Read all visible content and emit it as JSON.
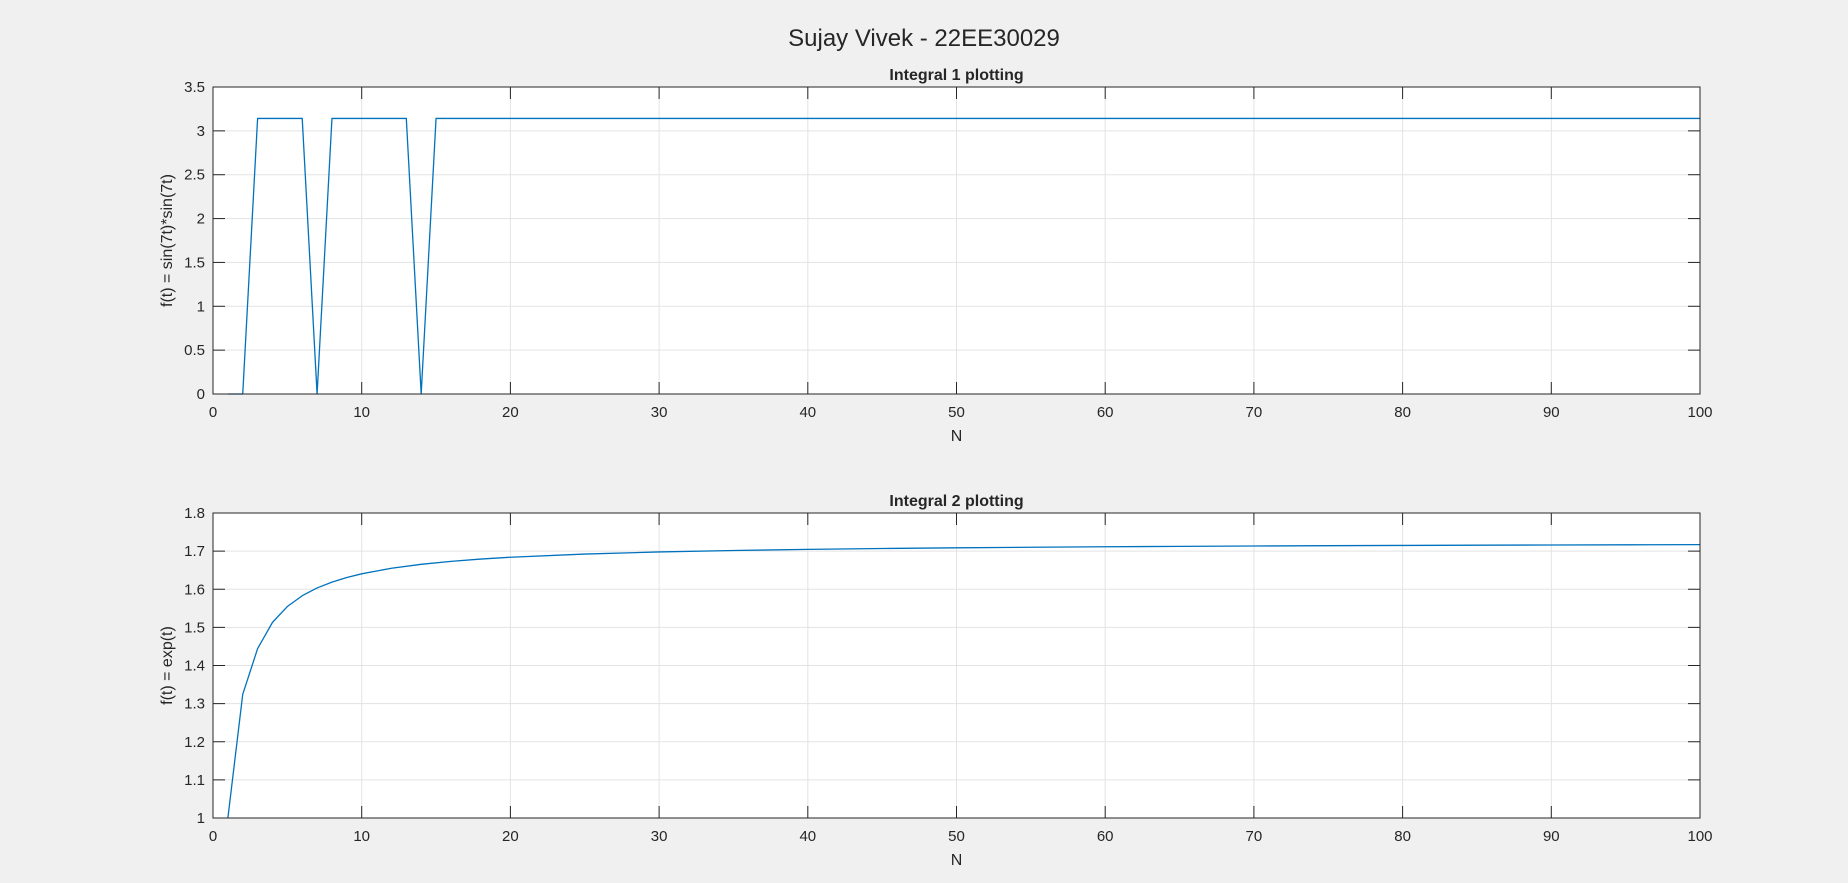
{
  "figure": {
    "suptitle": "Sujay Vivek - 22EE30029"
  },
  "chart_data": [
    {
      "type": "line",
      "title": "Integral 1 plotting",
      "xlabel": "N",
      "ylabel": "f(t) = sin(7t)*sin(7t)",
      "xlim": [
        0,
        100
      ],
      "ylim": [
        0,
        3.5
      ],
      "xticks": [
        0,
        10,
        20,
        30,
        40,
        50,
        60,
        70,
        80,
        90,
        100
      ],
      "yticks": [
        0,
        0.5,
        1,
        1.5,
        2,
        2.5,
        3,
        3.5
      ],
      "grid": true,
      "series": [
        {
          "color": "#0072BD",
          "x": [
            1,
            2,
            3,
            4,
            5,
            6,
            7,
            8,
            9,
            10,
            11,
            12,
            13,
            14,
            15,
            20,
            30,
            40,
            50,
            60,
            70,
            80,
            90,
            100
          ],
          "y": [
            0,
            0,
            3.1416,
            3.1416,
            3.1416,
            3.1416,
            0,
            3.1416,
            3.1416,
            3.1416,
            3.1416,
            3.1416,
            3.1416,
            0,
            3.1416,
            3.1416,
            3.1416,
            3.1416,
            3.1416,
            3.1416,
            3.1416,
            3.1416,
            3.1416,
            3.1416
          ]
        }
      ]
    },
    {
      "type": "line",
      "title": "Integral 2 plotting",
      "xlabel": "N",
      "ylabel": "f(t) = exp(t)",
      "xlim": [
        0,
        100
      ],
      "ylim": [
        1,
        1.8
      ],
      "xticks": [
        0,
        10,
        20,
        30,
        40,
        50,
        60,
        70,
        80,
        90,
        100
      ],
      "yticks": [
        1,
        1.1,
        1.2,
        1.3,
        1.4,
        1.5,
        1.6,
        1.7,
        1.8
      ],
      "grid": true,
      "series": [
        {
          "color": "#0072BD",
          "x": [
            1,
            2,
            3,
            4,
            5,
            6,
            7,
            8,
            9,
            10,
            12,
            14,
            16,
            18,
            20,
            25,
            30,
            35,
            40,
            45,
            50,
            55,
            60,
            65,
            70,
            75,
            80,
            85,
            90,
            95,
            100
          ],
          "y": [
            1.0,
            1.3244,
            1.4444,
            1.5131,
            1.5547,
            1.583,
            1.6035,
            1.6187,
            1.6308,
            1.6405,
            1.6551,
            1.6654,
            1.6732,
            1.6792,
            1.684,
            1.6923,
            1.6978,
            1.7017,
            1.7046,
            1.7069,
            1.7087,
            1.7102,
            1.7115,
            1.7125,
            1.7135,
            1.7142,
            1.7149,
            1.7156,
            1.7161,
            1.7166,
            1.717
          ]
        }
      ]
    }
  ]
}
